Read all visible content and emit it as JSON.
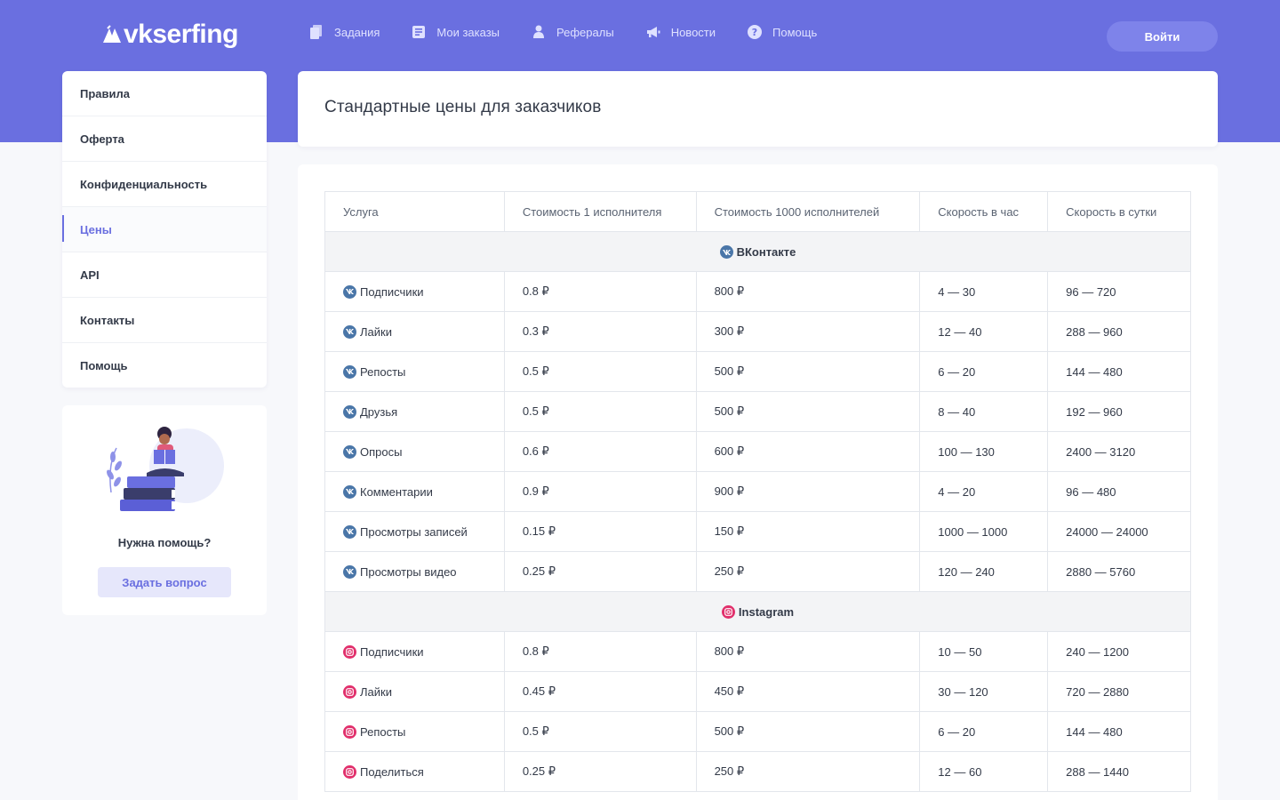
{
  "brand": {
    "name": "vkserfing"
  },
  "nav": [
    {
      "label": "Задания",
      "icon": "tasks-icon"
    },
    {
      "label": "Мои заказы",
      "icon": "orders-icon"
    },
    {
      "label": "Рефералы",
      "icon": "referrals-icon"
    },
    {
      "label": "Новости",
      "icon": "megaphone-icon"
    },
    {
      "label": "Помощь",
      "icon": "help-circle-icon"
    }
  ],
  "header": {
    "login_label": "Войти"
  },
  "sidebar": {
    "items": [
      {
        "label": "Правила"
      },
      {
        "label": "Оферта"
      },
      {
        "label": "Конфиденциальность"
      },
      {
        "label": "Цены",
        "active": true
      },
      {
        "label": "API"
      },
      {
        "label": "Контакты"
      },
      {
        "label": "Помощь"
      }
    ],
    "help": {
      "title": "Нужна помощь?",
      "button_label": "Задать вопрос"
    }
  },
  "page": {
    "title": "Стандартные цены для заказчиков"
  },
  "table": {
    "headers": [
      "Услуга",
      "Стоимость 1 исполнителя",
      "Стоимость 1000 исполнителей",
      "Скорость в час",
      "Скорость в сутки"
    ],
    "groups": [
      {
        "name": "ВКонтакте",
        "icon": "vk-icon",
        "rows": [
          [
            "Подписчики",
            "0.8 ₽",
            "800 ₽",
            "4 — 30",
            "96 — 720"
          ],
          [
            "Лайки",
            "0.3 ₽",
            "300 ₽",
            "12 — 40",
            "288 — 960"
          ],
          [
            "Репосты",
            "0.5 ₽",
            "500 ₽",
            "6 — 20",
            "144 — 480"
          ],
          [
            "Друзья",
            "0.5 ₽",
            "500 ₽",
            "8 — 40",
            "192 — 960"
          ],
          [
            "Опросы",
            "0.6 ₽",
            "600 ₽",
            "100 — 130",
            "2400 — 3120"
          ],
          [
            "Комментарии",
            "0.9 ₽",
            "900 ₽",
            "4 — 20",
            "96 — 480"
          ],
          [
            "Просмотры записей",
            "0.15 ₽",
            "150 ₽",
            "1000 — 1000",
            "24000 — 24000"
          ],
          [
            "Просмотры видео",
            "0.25 ₽",
            "250 ₽",
            "120 — 240",
            "2880 — 5760"
          ]
        ]
      },
      {
        "name": "Instagram",
        "icon": "instagram-icon",
        "rows": [
          [
            "Подписчики",
            "0.8 ₽",
            "800 ₽",
            "10 — 50",
            "240 — 1200"
          ],
          [
            "Лайки",
            "0.45 ₽",
            "450 ₽",
            "30 — 120",
            "720 — 2880"
          ],
          [
            "Репосты",
            "0.5 ₽",
            "500 ₽",
            "6 — 20",
            "144 — 480"
          ],
          [
            "Поделиться",
            "0.25 ₽",
            "250 ₽",
            "12 — 60",
            "288 — 1440"
          ]
        ]
      }
    ]
  },
  "colors": {
    "accent": "#6a6fe0",
    "vk": "#4a76a8",
    "instagram": "#e1306c"
  }
}
